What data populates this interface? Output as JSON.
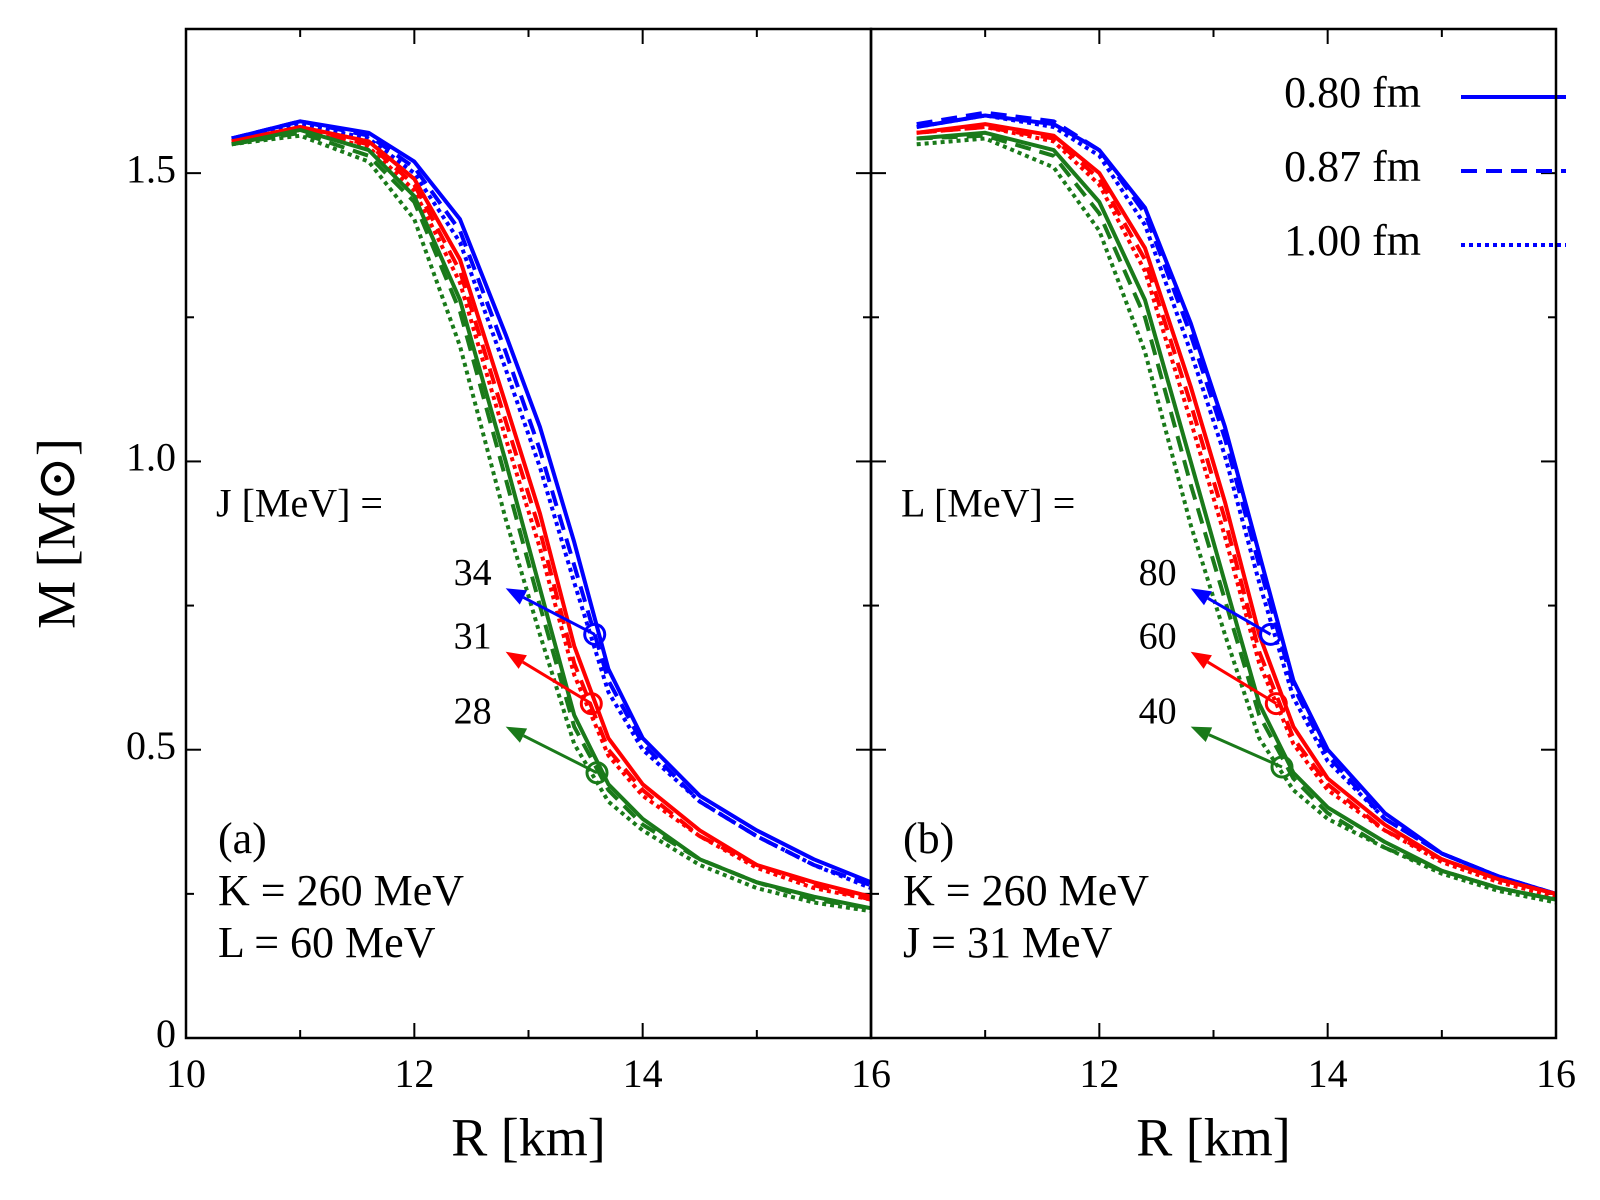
{
  "chart_data": [
    {
      "type": "line",
      "xlabel": "R [km]",
      "ylabel": "M [M⊙]",
      "xlim": [
        10,
        16
      ],
      "ylim": [
        0,
        1.75
      ],
      "xticks": [
        10,
        12,
        14,
        16
      ],
      "xminor": [
        11,
        13,
        15
      ],
      "yticks": [
        0,
        0.5,
        {
          "value": 1,
          "label": "1.0"
        },
        1.5
      ],
      "yminor": [
        0.25,
        0.75,
        1.25
      ],
      "ytick_labels": true,
      "x": [
        10.4,
        11.0,
        11.6,
        12.0,
        12.4,
        12.8,
        13.1,
        13.4,
        13.7,
        14.0,
        14.5,
        15.0,
        15.5,
        16.0
      ],
      "series": [
        {
          "color": "#0000ff",
          "dash": "solid",
          "values": [
            1.56,
            1.59,
            1.57,
            1.52,
            1.42,
            1.22,
            1.06,
            0.86,
            0.64,
            0.52,
            0.42,
            0.36,
            0.31,
            0.27
          ]
        },
        {
          "color": "#0000ff",
          "dash": "dashed",
          "values": [
            1.56,
            1.59,
            1.565,
            1.51,
            1.4,
            1.19,
            1.02,
            0.82,
            0.62,
            0.51,
            0.41,
            0.35,
            0.3,
            0.265
          ]
        },
        {
          "color": "#0000ff",
          "dash": "dotted",
          "values": [
            1.56,
            1.585,
            1.56,
            1.5,
            1.38,
            1.16,
            0.99,
            0.79,
            0.6,
            0.5,
            0.41,
            0.35,
            0.3,
            0.26
          ]
        },
        {
          "color": "#ff0000",
          "dash": "solid",
          "values": [
            1.555,
            1.58,
            1.555,
            1.49,
            1.35,
            1.1,
            0.91,
            0.68,
            0.52,
            0.44,
            0.36,
            0.3,
            0.27,
            0.245
          ]
        },
        {
          "color": "#ff0000",
          "dash": "dashed",
          "values": [
            1.555,
            1.575,
            1.55,
            1.48,
            1.33,
            1.07,
            0.88,
            0.65,
            0.5,
            0.43,
            0.35,
            0.3,
            0.265,
            0.24
          ]
        },
        {
          "color": "#ff0000",
          "dash": "dotted",
          "values": [
            1.555,
            1.575,
            1.545,
            1.47,
            1.31,
            1.04,
            0.85,
            0.63,
            0.49,
            0.42,
            0.35,
            0.295,
            0.26,
            0.24
          ]
        },
        {
          "color": "#1a7a1a",
          "dash": "solid",
          "values": [
            1.55,
            1.575,
            1.54,
            1.46,
            1.28,
            1.0,
            0.78,
            0.56,
            0.44,
            0.38,
            0.31,
            0.27,
            0.245,
            0.225
          ]
        },
        {
          "color": "#1a7a1a",
          "dash": "dashed",
          "values": [
            1.55,
            1.57,
            1.53,
            1.45,
            1.26,
            0.97,
            0.75,
            0.54,
            0.43,
            0.37,
            0.31,
            0.27,
            0.24,
            0.225
          ]
        },
        {
          "color": "#1a7a1a",
          "dash": "dotted",
          "values": [
            1.55,
            1.565,
            1.52,
            1.42,
            1.2,
            0.9,
            0.7,
            0.51,
            0.41,
            0.36,
            0.3,
            0.26,
            0.235,
            0.22
          ]
        }
      ],
      "arrow_title": "J [MeV] =",
      "arrows": [
        {
          "text": "34",
          "color": "#0000ff",
          "xy": [
            13.58,
            0.7
          ],
          "xytext": [
            12.8,
            0.78
          ]
        },
        {
          "text": "31",
          "color": "#ff0000",
          "xy": [
            13.55,
            0.58
          ],
          "xytext": [
            12.8,
            0.67
          ]
        },
        {
          "text": "28",
          "color": "#1a7a1a",
          "xy": [
            13.6,
            0.46
          ],
          "xytext": [
            12.8,
            0.54
          ]
        }
      ],
      "texts": [
        "(a)",
        "K = 260 MeV",
        "L = 60 MeV"
      ]
    },
    {
      "type": "line",
      "xlabel": "R [km]",
      "xlim": [
        10,
        16
      ],
      "ylim": [
        0,
        1.75
      ],
      "xticks": [
        12,
        14,
        16
      ],
      "xminor": [
        11,
        13,
        15
      ],
      "yticks": [
        0,
        0.5,
        1,
        1.5
      ],
      "yminor": [
        0.25,
        0.75,
        1.25
      ],
      "ytick_labels": false,
      "x": [
        10.4,
        11.0,
        11.6,
        12.0,
        12.4,
        12.8,
        13.1,
        13.4,
        13.7,
        14.0,
        14.5,
        15.0,
        15.5,
        16.0
      ],
      "series": [
        {
          "color": "#0000ff",
          "dash": "solid",
          "values": [
            1.58,
            1.6,
            1.585,
            1.54,
            1.44,
            1.24,
            1.06,
            0.84,
            0.62,
            0.5,
            0.39,
            0.32,
            0.28,
            0.25
          ]
        },
        {
          "color": "#0000ff",
          "dash": "dashed",
          "values": [
            1.585,
            1.605,
            1.59,
            1.54,
            1.43,
            1.22,
            1.04,
            0.82,
            0.61,
            0.49,
            0.38,
            0.32,
            0.28,
            0.25
          ]
        },
        {
          "color": "#0000ff",
          "dash": "dotted",
          "values": [
            1.58,
            1.6,
            1.58,
            1.53,
            1.41,
            1.19,
            1.01,
            0.79,
            0.59,
            0.48,
            0.38,
            0.32,
            0.28,
            0.25
          ]
        },
        {
          "color": "#ff0000",
          "dash": "solid",
          "values": [
            1.57,
            1.585,
            1.565,
            1.5,
            1.37,
            1.13,
            0.93,
            0.7,
            0.54,
            0.45,
            0.37,
            0.31,
            0.275,
            0.25
          ]
        },
        {
          "color": "#ff0000",
          "dash": "dashed",
          "values": [
            1.57,
            1.58,
            1.56,
            1.49,
            1.35,
            1.1,
            0.9,
            0.67,
            0.52,
            0.44,
            0.36,
            0.31,
            0.275,
            0.25
          ]
        },
        {
          "color": "#ff0000",
          "dash": "dotted",
          "values": [
            1.57,
            1.58,
            1.555,
            1.48,
            1.33,
            1.07,
            0.87,
            0.65,
            0.51,
            0.43,
            0.36,
            0.305,
            0.27,
            0.245
          ]
        },
        {
          "color": "#1a7a1a",
          "dash": "solid",
          "values": [
            1.56,
            1.57,
            1.54,
            1.45,
            1.28,
            1.0,
            0.79,
            0.58,
            0.46,
            0.4,
            0.34,
            0.29,
            0.26,
            0.24
          ]
        },
        {
          "color": "#1a7a1a",
          "dash": "dashed",
          "values": [
            1.56,
            1.565,
            1.53,
            1.43,
            1.25,
            0.96,
            0.76,
            0.56,
            0.45,
            0.39,
            0.33,
            0.29,
            0.26,
            0.24
          ]
        },
        {
          "color": "#1a7a1a",
          "dash": "dotted",
          "values": [
            1.55,
            1.56,
            1.51,
            1.4,
            1.19,
            0.89,
            0.7,
            0.52,
            0.43,
            0.38,
            0.33,
            0.285,
            0.255,
            0.235
          ]
        }
      ],
      "arrow_title": "L [MeV] =",
      "arrows": [
        {
          "text": "80",
          "color": "#0000ff",
          "xy": [
            13.5,
            0.7
          ],
          "xytext": [
            12.8,
            0.78
          ]
        },
        {
          "text": "60",
          "color": "#ff0000",
          "xy": [
            13.55,
            0.58
          ],
          "xytext": [
            12.8,
            0.67
          ]
        },
        {
          "text": "40",
          "color": "#1a7a1a",
          "xy": [
            13.6,
            0.47
          ],
          "xytext": [
            12.8,
            0.54
          ]
        }
      ],
      "texts": [
        "(b)",
        "K = 260 MeV",
        "J = 31 MeV"
      ],
      "legend": {
        "loc": "upper right",
        "entries": [
          {
            "label": "0.80 fm",
            "color": "#0000ff",
            "dash": "solid"
          },
          {
            "label": "0.87 fm",
            "color": "#0000ff",
            "dash": "dashed"
          },
          {
            "label": "1.00 fm",
            "color": "#0000ff",
            "dash": "dotted"
          }
        ]
      }
    }
  ]
}
